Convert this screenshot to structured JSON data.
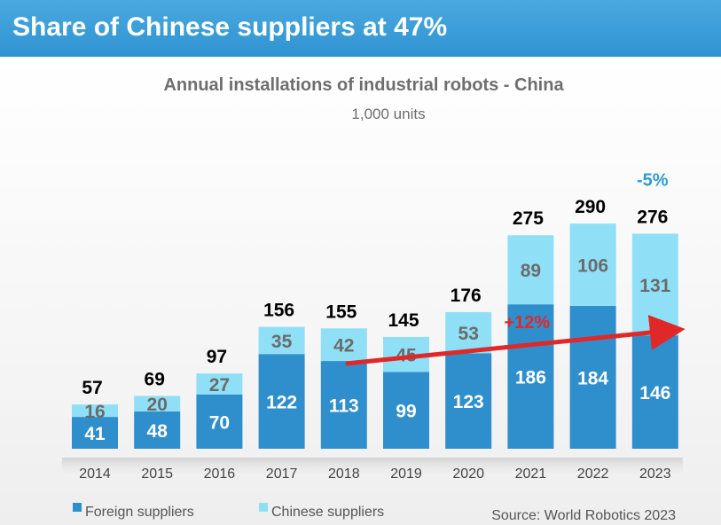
{
  "header": {
    "title": "Share of Chinese suppliers at 47%"
  },
  "chart_data": {
    "type": "bar",
    "stacked": true,
    "title": "Annual installations of industrial robots  - China",
    "subtitle": "1,000 units",
    "categories": [
      "2014",
      "2015",
      "2016",
      "2017",
      "2018",
      "2019",
      "2020",
      "2021",
      "2022",
      "2023"
    ],
    "series": [
      {
        "name": "Foreign suppliers",
        "color": "#2f8fcc",
        "values": [
          41,
          48,
          70,
          122,
          113,
          99,
          123,
          186,
          184,
          146
        ]
      },
      {
        "name": "Chinese suppliers",
        "color": "#8fe0f7",
        "values": [
          16,
          20,
          27,
          35,
          42,
          45,
          53,
          89,
          106,
          131
        ]
      }
    ],
    "totals": [
      57,
      69,
      97,
      156,
      155,
      145,
      176,
      275,
      290,
      276
    ],
    "annotations": [
      {
        "text": "-5%",
        "category": "2023",
        "color": "#2e9bd6"
      },
      {
        "text": "+12%",
        "from_category": "2018",
        "to_category": "2023",
        "color": "#e02828",
        "kind": "trend-arrow"
      }
    ],
    "legend": {
      "placement": "bottom-left"
    },
    "grid": false,
    "ylim": [
      0,
      320
    ]
  },
  "source": "Source: World Robotics 2023"
}
